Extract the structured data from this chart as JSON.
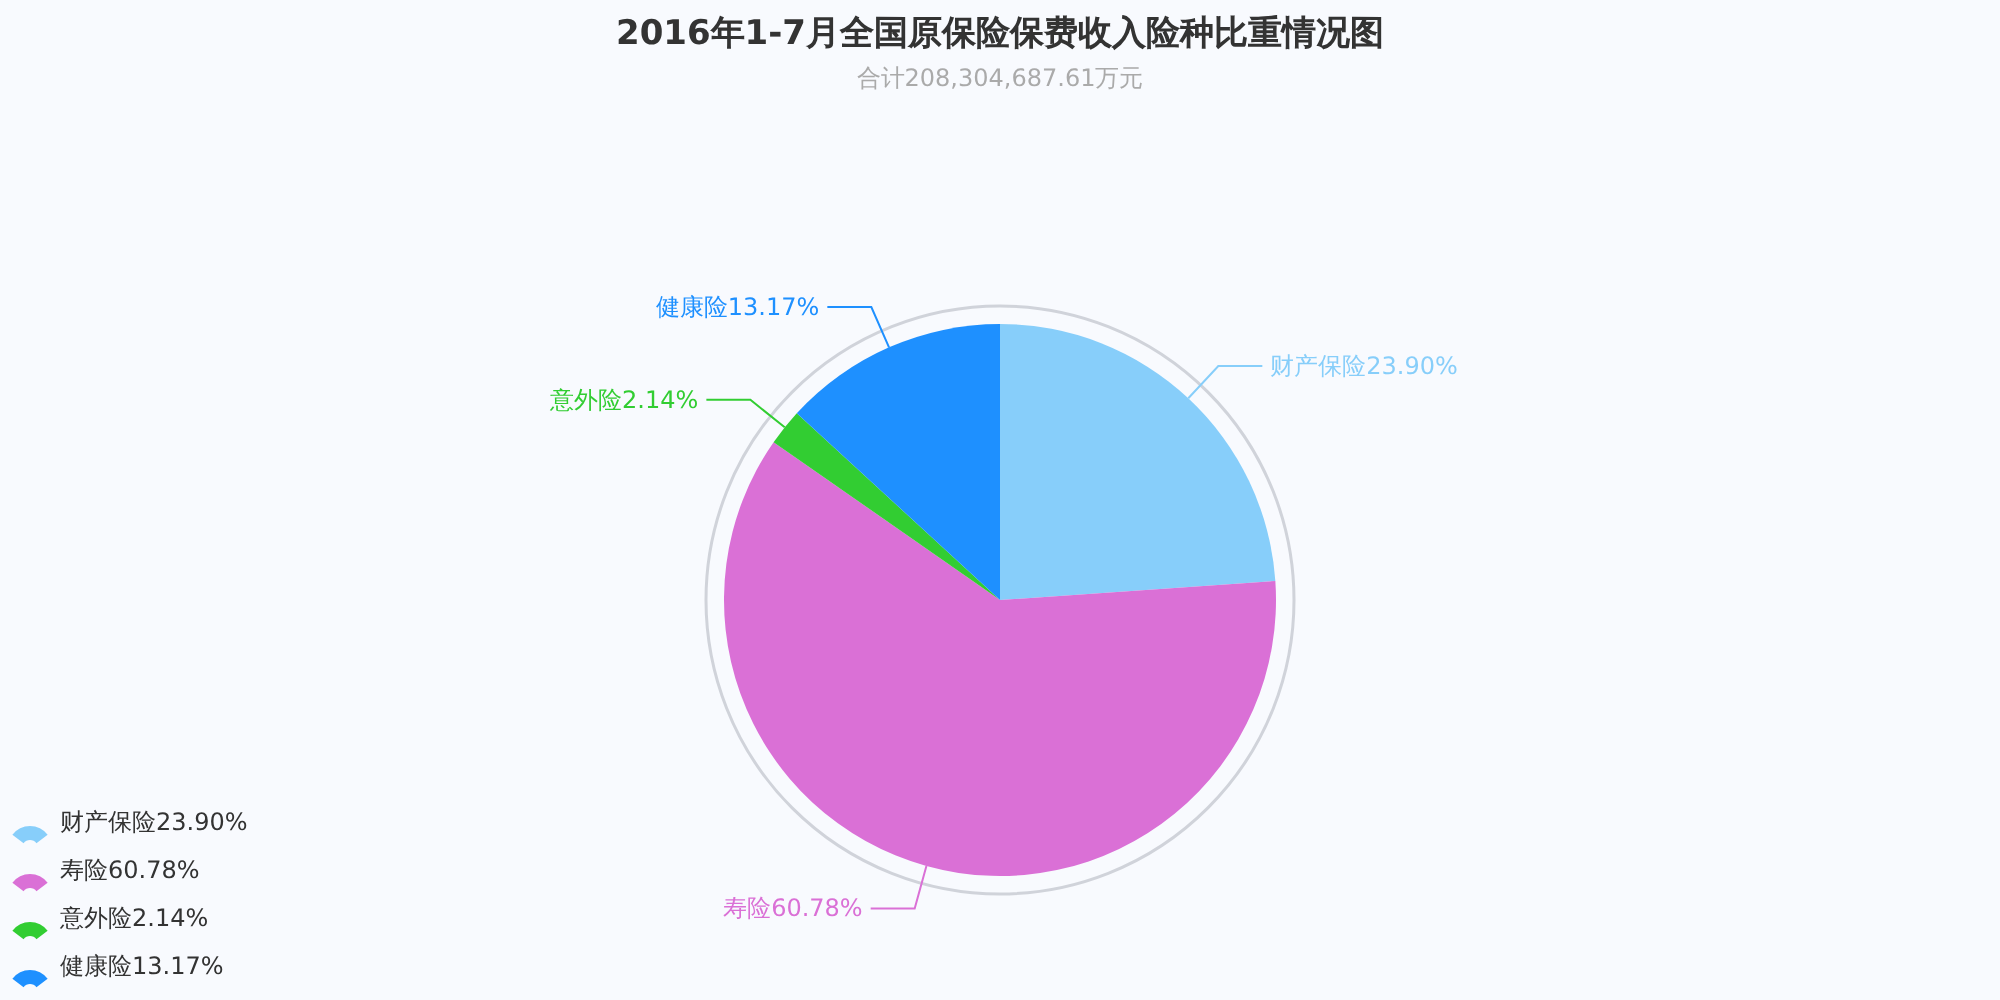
{
  "chart_data": {
    "type": "pie",
    "title": "2016年1-7月全国原保险保费收入险种比重情况图",
    "subtitle": "合计208,304,687.61万元",
    "categories": [
      "财产保险",
      "寿险",
      "意外险",
      "健康险"
    ],
    "values": [
      23.9,
      60.78,
      2.14,
      13.17
    ],
    "value_labels": [
      "23.90%",
      "60.78%",
      "2.14%",
      "13.17%"
    ],
    "colors": [
      "#87cefa",
      "#da70d6",
      "#32cd32",
      "#1e90ff"
    ],
    "legend": "bottom left"
  }
}
